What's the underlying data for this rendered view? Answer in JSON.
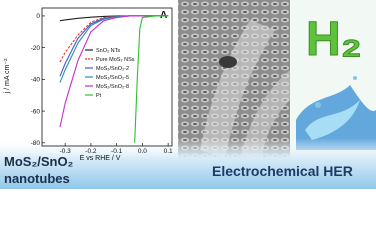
{
  "chart_data": {
    "type": "line",
    "annotation": "A",
    "xlabel": "E vs RHE / V",
    "ylabel": "j / mA cm⁻²",
    "x": [
      -0.32,
      -0.3,
      -0.25,
      -0.2,
      -0.15,
      -0.1,
      -0.05,
      -0.03,
      -0.02,
      -0.01,
      0,
      0.05,
      0.1
    ],
    "series": [
      {
        "name": "SnO₂ NTs",
        "color": "#222222",
        "values": [
          -3,
          -2.5,
          -1.5,
          -0.8,
          -0.3,
          0,
          0,
          0,
          0,
          0,
          0,
          0,
          0
        ]
      },
      {
        "name": "Pure MoS₂ NSs",
        "color": "#e8312f",
        "dashed": true,
        "values": [
          -29,
          -23,
          -12,
          -4,
          -1,
          0,
          0,
          0,
          0,
          0,
          0,
          0,
          0
        ]
      },
      {
        "name": "MoS₂/SnO₂-2",
        "color": "#3f5bd8",
        "values": [
          -38,
          -30,
          -14,
          -5,
          -1.5,
          -0.5,
          0,
          0,
          0,
          0,
          0,
          0,
          0
        ]
      },
      {
        "name": "MoS₂/SnO₂-5",
        "color": "#2a8fa8",
        "values": [
          -42,
          -34,
          -17,
          -6,
          -2,
          -0.5,
          0,
          0,
          0,
          0,
          0,
          0,
          0
        ]
      },
      {
        "name": "MoS₂/SnO₂-8",
        "color": "#c72fc9",
        "values": [
          -70,
          -55,
          -28,
          -10,
          -3,
          -1,
          0,
          0,
          0,
          0,
          0,
          0,
          0
        ]
      },
      {
        "name": "Pt",
        "color": "#2ec02e",
        "values": [
          null,
          null,
          null,
          null,
          null,
          null,
          null,
          -80,
          -40,
          -8,
          -1,
          0,
          0
        ]
      }
    ],
    "xlim": [
      -0.39,
      0.115
    ],
    "ylim": [
      -82,
      5
    ],
    "xticks": [
      -0.3,
      -0.2,
      -0.1,
      {
        "value": 0,
        "label": "0.0"
      },
      0.1
    ],
    "yticks": [
      -80,
      -60,
      -40,
      -20,
      0
    ],
    "legend": "center"
  },
  "labels": {
    "product": [
      "MoS₂/SnO₂",
      "nanotubes"
    ],
    "application": "Electrochemical HER",
    "gas": "H₂"
  }
}
